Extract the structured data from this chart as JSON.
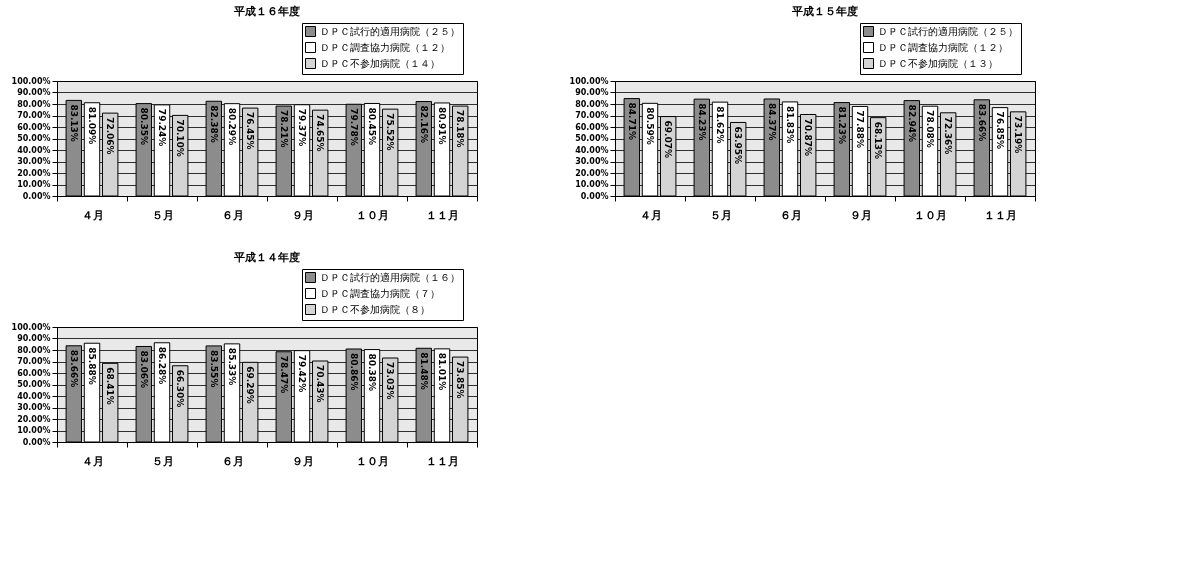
{
  "chart_data": [
    {
      "type": "bar",
      "title": "平成１６年度",
      "categories": [
        "４月",
        "５月",
        "６月",
        "９月",
        "１０月",
        "１１月"
      ],
      "series": [
        {
          "name": "ＤＰＣ試行的適用病院（２５）",
          "color": "#8c8c8c",
          "values": [
            83.13,
            80.35,
            82.38,
            78.21,
            79.78,
            82.16
          ],
          "value_labels": [
            "83.13%",
            "80.35%",
            "82.38%",
            "78.21%",
            "79.78%",
            "82.16%"
          ]
        },
        {
          "name": "ＤＰＣ調査協力病院（１２）",
          "color": "#ffffff",
          "values": [
            81.09,
            79.24,
            80.29,
            79.37,
            80.45,
            80.91
          ],
          "value_labels": [
            "81.09%",
            "79.24%",
            "80.29%",
            "79.37%",
            "80.45%",
            "80.91%"
          ]
        },
        {
          "name": "ＤＰＣ不参加病院（１４）",
          "color": "#d4d4d4",
          "values": [
            72.06,
            70.1,
            76.45,
            74.65,
            75.52,
            78.18
          ],
          "value_labels": [
            "72.06%",
            "70.10%",
            "76.45%",
            "74.65%",
            "75.52%",
            "78.18%"
          ]
        }
      ],
      "ylim": [
        0,
        100
      ],
      "yticks": [
        {
          "value": 0,
          "label": "0.00%"
        },
        {
          "value": 10,
          "label": "10.00%"
        },
        {
          "value": 20,
          "label": "20.00%"
        },
        {
          "value": 30,
          "label": "30.00%"
        },
        {
          "value": 40,
          "label": "40.00%"
        },
        {
          "value": 50,
          "label": "50.00%"
        },
        {
          "value": 60,
          "label": "60.00%"
        },
        {
          "value": 70,
          "label": "70.00%"
        },
        {
          "value": 80,
          "label": "80.00%"
        },
        {
          "value": 90,
          "label": "90.00%"
        },
        {
          "value": 100,
          "label": "100.00%"
        }
      ],
      "grid": "y",
      "legend": "top right"
    },
    {
      "type": "bar",
      "title": "平成１５年度",
      "categories": [
        "４月",
        "５月",
        "６月",
        "９月",
        "１０月",
        "１１月"
      ],
      "series": [
        {
          "name": "ＤＰＣ試行的適用病院（２５）",
          "color": "#8c8c8c",
          "values": [
            84.71,
            84.23,
            84.37,
            81.23,
            82.94,
            83.66
          ],
          "value_labels": [
            "84.71%",
            "84.23%",
            "84.37%",
            "81.23%",
            "82.94%",
            "83.66%"
          ]
        },
        {
          "name": "ＤＰＣ調査協力病院（１２）",
          "color": "#ffffff",
          "values": [
            80.59,
            81.62,
            81.83,
            77.88,
            78.08,
            76.85
          ],
          "value_labels": [
            "80.59%",
            "81.62%",
            "81.83%",
            "77.88%",
            "78.08%",
            "76.85%"
          ]
        },
        {
          "name": "ＤＰＣ不参加病院（１３）",
          "color": "#d4d4d4",
          "values": [
            69.07,
            63.95,
            70.87,
            68.13,
            72.36,
            73.19
          ],
          "value_labels": [
            "69.07%",
            "63.95%",
            "70.87%",
            "68.13%",
            "72.36%",
            "73.19%"
          ]
        }
      ],
      "ylim": [
        0,
        100
      ],
      "yticks": [
        {
          "value": 0,
          "label": "0.00%"
        },
        {
          "value": 10,
          "label": "10.00%"
        },
        {
          "value": 20,
          "label": "20.00%"
        },
        {
          "value": 30,
          "label": "30.00%"
        },
        {
          "value": 40,
          "label": "40.00%"
        },
        {
          "value": 50,
          "label": "50.00%"
        },
        {
          "value": 60,
          "label": "60.00%"
        },
        {
          "value": 70,
          "label": "70.00%"
        },
        {
          "value": 80,
          "label": "80.00%"
        },
        {
          "value": 90,
          "label": "90.00%"
        },
        {
          "value": 100,
          "label": "100.00%"
        }
      ],
      "grid": "y",
      "legend": "top right"
    },
    {
      "type": "bar",
      "title": "平成１４年度",
      "categories": [
        "４月",
        "５月",
        "６月",
        "９月",
        "１０月",
        "１１月"
      ],
      "series": [
        {
          "name": "ＤＰＣ試行的適用病院（１６）",
          "color": "#8c8c8c",
          "values": [
            83.66,
            83.06,
            83.55,
            78.47,
            80.86,
            81.48
          ],
          "value_labels": [
            "83.66%",
            "83.06%",
            "83.55%",
            "78.47%",
            "80.86%",
            "81.48%"
          ]
        },
        {
          "name": "ＤＰＣ調査協力病院（７）",
          "color": "#ffffff",
          "values": [
            85.88,
            86.28,
            85.33,
            79.42,
            80.38,
            81.01
          ],
          "value_labels": [
            "85.88%",
            "86.28%",
            "85.33%",
            "79.42%",
            "80.38%",
            "81.01%"
          ]
        },
        {
          "name": "ＤＰＣ不参加病院（８）",
          "color": "#d4d4d4",
          "values": [
            68.41,
            66.3,
            69.29,
            70.43,
            73.03,
            73.85
          ],
          "value_labels": [
            "68.41%",
            "66.30%",
            "69.29%",
            "70.43%",
            "73.03%",
            "73.85%"
          ]
        }
      ],
      "ylim": [
        0,
        100
      ],
      "yticks": [
        {
          "value": 0,
          "label": "0.00%"
        },
        {
          "value": 10,
          "label": "10.00%"
        },
        {
          "value": 20,
          "label": "20.00%"
        },
        {
          "value": 30,
          "label": "30.00%"
        },
        {
          "value": 40,
          "label": "40.00%"
        },
        {
          "value": 50,
          "label": "50.00%"
        },
        {
          "value": 60,
          "label": "60.00%"
        },
        {
          "value": 70,
          "label": "70.00%"
        },
        {
          "value": 80,
          "label": "80.00%"
        },
        {
          "value": 90,
          "label": "90.00%"
        },
        {
          "value": 100,
          "label": "100.00%"
        }
      ],
      "grid": "y",
      "legend": "top right"
    }
  ]
}
